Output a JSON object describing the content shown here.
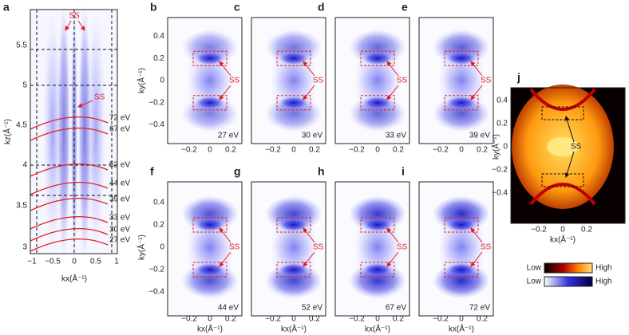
{
  "panel_a": {
    "label": "a",
    "ss_top": "SS",
    "ss_mid": "SS",
    "x_label": "kx(Å⁻¹)",
    "y_label": "kz(Å⁻¹)",
    "xticks": [
      "−1",
      "−0.5",
      "0",
      "0.5",
      "1"
    ],
    "yticks": [
      "5.5",
      "5",
      "4.5",
      "4",
      "3.5",
      "3"
    ],
    "energies": [
      "72 eV",
      "67 eV",
      "52 eV",
      "44 eV",
      "39 eV",
      "33 eV",
      "30 eV",
      "27 eV"
    ]
  },
  "map_axes": {
    "x_label": "kx(Å⁻¹)",
    "y_label": "ky(Å⁻¹)",
    "xticks": [
      "−0.2",
      "0",
      "0.2"
    ],
    "yticks": [
      "0.4",
      "0.2",
      "0",
      "−0.2",
      "−0.4"
    ],
    "ss_label": "SS"
  },
  "maps": [
    {
      "label": "b",
      "energy": "27 eV"
    },
    {
      "label": "c",
      "energy": "30 eV"
    },
    {
      "label": "d",
      "energy": "33 eV"
    },
    {
      "label": "e",
      "energy": "39 eV"
    },
    {
      "label": "f",
      "energy": "44 eV"
    },
    {
      "label": "g",
      "energy": "52 eV"
    },
    {
      "label": "h",
      "energy": "67 eV"
    },
    {
      "label": "i",
      "energy": "72 eV"
    }
  ],
  "panel_j": {
    "label": "j",
    "ss_label": "SS",
    "x_label": "kx(Å⁻¹)",
    "y_label": "ky(Å⁻¹)",
    "xticks": [
      "−0.2",
      "0",
      "0.2"
    ],
    "yticks": [
      "0.4",
      "0.2",
      "0",
      "−0.2",
      "−0.4"
    ]
  },
  "colorbars": [
    {
      "low": "Low",
      "high": "High"
    },
    {
      "low": "Low",
      "high": "High"
    }
  ]
}
